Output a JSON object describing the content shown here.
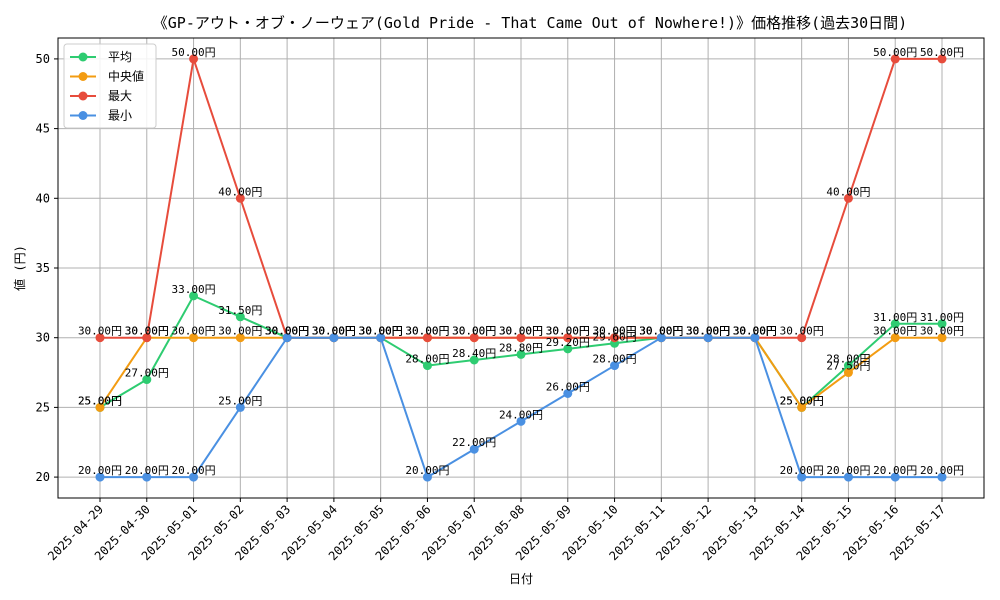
{
  "chart_data": {
    "type": "line",
    "title": "《GP-アウト・オブ・ノーウェア(Gold Pride - That Came Out of Nowhere!)》価格推移(過去30日間)",
    "xlabel": "日付",
    "ylabel": "値 (円)",
    "ylim": [
      18.5,
      51.5
    ],
    "yticks": [
      20,
      25,
      30,
      35,
      40,
      45,
      50
    ],
    "grid": true,
    "legend_position": "top-left",
    "value_suffix": "円",
    "categories": [
      "2025-04-29",
      "2025-04-30",
      "2025-05-01",
      "2025-05-02",
      "2025-05-03",
      "2025-05-04",
      "2025-05-05",
      "2025-05-06",
      "2025-05-07",
      "2025-05-08",
      "2025-05-09",
      "2025-05-10",
      "2025-05-11",
      "2025-05-12",
      "2025-05-13",
      "2025-05-14",
      "2025-05-15",
      "2025-05-16",
      "2025-05-17"
    ],
    "series": [
      {
        "name": "平均",
        "color": "#2ecc71",
        "values": [
          25,
          27,
          33,
          31.5,
          30,
          30,
          30,
          28,
          28.4,
          28.8,
          29.2,
          29.6,
          30,
          30,
          30,
          25,
          28,
          31,
          31
        ]
      },
      {
        "name": "中央値",
        "color": "#f39c12",
        "values": [
          25,
          30,
          30,
          30,
          30,
          30,
          30,
          30,
          30,
          30,
          30,
          30,
          30,
          30,
          30,
          25,
          27.5,
          30,
          30
        ]
      },
      {
        "name": "最大",
        "color": "#e74c3c",
        "values": [
          30,
          30,
          50,
          40,
          30,
          30,
          30,
          30,
          30,
          30,
          30,
          30,
          30,
          30,
          30,
          30,
          40,
          50,
          50
        ]
      },
      {
        "name": "最小",
        "color": "#4a90e2",
        "values": [
          20,
          20,
          20,
          25,
          30,
          30,
          30,
          20,
          22,
          24,
          26,
          28,
          30,
          30,
          30,
          20,
          20,
          20,
          20
        ]
      }
    ]
  }
}
